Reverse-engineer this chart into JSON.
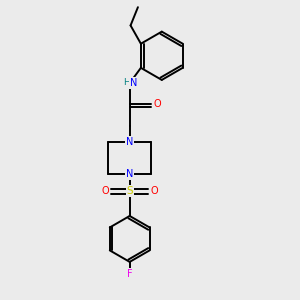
{
  "bg_color": "#ebebeb",
  "line_color": "#000000",
  "bond_width": 1.4,
  "atom_colors": {
    "N": "#0000ff",
    "O": "#ff0000",
    "S": "#cccc00",
    "F": "#ee00ee",
    "H": "#008080",
    "C": "#000000"
  },
  "figsize": [
    3.0,
    3.0
  ],
  "dpi": 100,
  "xlim": [
    0,
    10
  ],
  "ylim": [
    0,
    10
  ]
}
